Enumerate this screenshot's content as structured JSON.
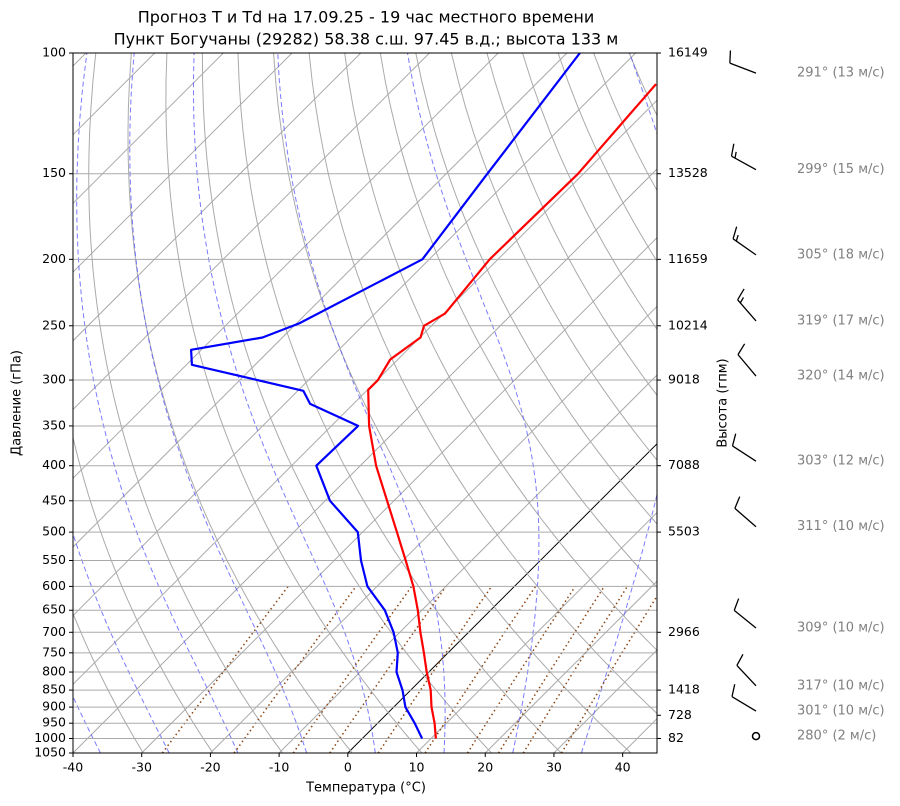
{
  "chart_data": {
    "type": "skewt",
    "title": "Прогноз T и Td на 17.09.25 - 19 час местного времени",
    "subtitle": "Пункт Богучаны (29282) 58.38 с.ш. 97.45 в.д.; высота 133 м",
    "x_label": "Температура (°C)",
    "y_label": "Давление (гПа)",
    "y2_label": "Высота (гпм)",
    "xlim": [
      -40,
      45
    ],
    "xticks": [
      -40,
      -30,
      -20,
      -10,
      0,
      10,
      20,
      30,
      40
    ],
    "ylim": [
      1050,
      100
    ],
    "log_y": true,
    "grid": true,
    "yticks": [
      100,
      150,
      200,
      250,
      300,
      350,
      400,
      450,
      500,
      550,
      600,
      650,
      700,
      750,
      800,
      850,
      900,
      950,
      1000,
      1050
    ],
    "height_ticks": {
      "pressure": [
        100,
        150,
        200,
        250,
        300,
        400,
        500,
        700,
        850,
        925,
        1000
      ],
      "height": [
        16149,
        13528,
        11659,
        10214,
        9018,
        7088,
        5503,
        2966,
        1418,
        728,
        82
      ]
    },
    "series": [
      {
        "color": "#ff0000",
        "pressure": [
          1000,
          950,
          900,
          850,
          800,
          750,
          700,
          650,
          600,
          550,
          500,
          450,
          400,
          350,
          310,
          300,
          280,
          260,
          250,
          240,
          200,
          150,
          111
        ],
        "values": [
          10.7,
          8.3,
          5.5,
          2.9,
          -0.3,
          -3.5,
          -7.0,
          -10.6,
          -14.7,
          -19.6,
          -25.0,
          -31.0,
          -37.7,
          -44.5,
          -49.9,
          -49.9,
          -51.1,
          -49.9,
          -51.1,
          -49.8,
          -51.2,
          -50.8,
          -52.5
        ]
      },
      {
        "color": "#0000ff",
        "pressure": [
          1000,
          950,
          900,
          850,
          800,
          750,
          700,
          650,
          600,
          550,
          500,
          450,
          400,
          350,
          325,
          311,
          285,
          271,
          260,
          248,
          200,
          150,
          100
        ],
        "values": [
          8.7,
          5.4,
          1.7,
          -1.2,
          -4.7,
          -7.3,
          -10.9,
          -15.4,
          -21.4,
          -26.1,
          -30.7,
          -39.3,
          -46.4,
          -46.1,
          -56.3,
          -59.2,
          -79.2,
          -81.5,
          -72.9,
          -69.6,
          -61.0,
          -64.0,
          -68.1
        ]
      }
    ],
    "wind": {
      "pressure": [
        107,
        148,
        197,
        246,
        296,
        394,
        491,
        690,
        838,
        912,
        992
      ],
      "direction": [
        291,
        299,
        305,
        319,
        320,
        303,
        311,
        309,
        317,
        301,
        280
      ],
      "speed": [
        13,
        15,
        18,
        17,
        14,
        12,
        10,
        10,
        10,
        10,
        2
      ],
      "labels": [
        "291° (13 м/с)",
        "299° (15 м/с)",
        "305° (18 м/с)",
        "319° (17 м/с)",
        "320° (14 м/с)",
        "303° (12 м/с)",
        "311° (10 м/с)",
        "309° (10 м/с)",
        "317° (10 м/с)",
        "301° (10 м/с)",
        "280° (2 м/с)"
      ]
    }
  }
}
